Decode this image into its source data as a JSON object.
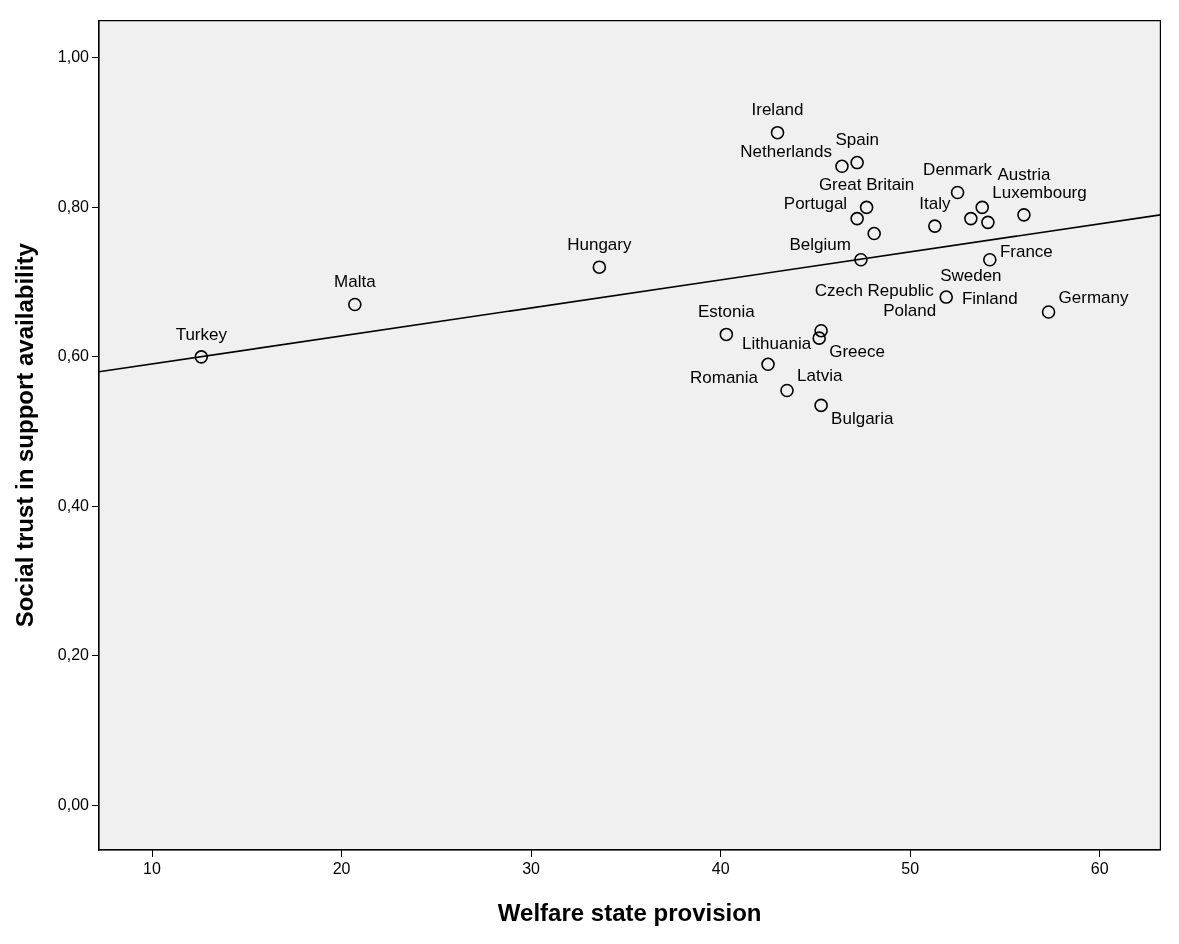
{
  "chart_data": {
    "type": "scatter",
    "xlabel": "Welfare state provision",
    "ylabel": "Social trust in support availability",
    "xlim": [
      7.2,
      63.2
    ],
    "ylim": [
      -0.06,
      1.05
    ],
    "xticks": [
      10,
      20,
      30,
      40,
      50,
      60
    ],
    "yticks": [
      {
        "value": 0,
        "label": "0,00"
      },
      {
        "value": 0.2,
        "label": "0,20"
      },
      {
        "value": 0.4,
        "label": "0,40"
      },
      {
        "value": 0.6,
        "label": "0,60"
      },
      {
        "value": 0.8,
        "label": "0,80"
      },
      {
        "value": 1,
        "label": "1,00"
      }
    ],
    "grid": false,
    "legend": false,
    "series": [
      {
        "type": "scatter",
        "color": "#000000",
        "marker": "circle",
        "x": [
          12.6,
          20.7,
          33.6,
          43.0,
          47.2,
          46.4,
          52.5,
          47.7,
          53.8,
          56.0,
          47.2,
          51.3,
          48.1,
          53.2,
          54.1,
          54.2,
          47.4,
          51.9,
          57.3,
          40.3,
          45.2,
          45.3,
          42.5,
          43.5,
          45.3
        ],
        "values": [
          0.6,
          0.67,
          0.72,
          0.9,
          0.86,
          0.855,
          0.82,
          0.8,
          0.8,
          0.79,
          0.785,
          0.775,
          0.765,
          0.785,
          0.78,
          0.73,
          0.73,
          0.68,
          0.66,
          0.63,
          0.625,
          0.635,
          0.59,
          0.555,
          0.535
        ]
      },
      {
        "type": "line",
        "color": "#000000",
        "line_style": "solid",
        "x": [
          7.2,
          63.2
        ],
        "values": [
          0.58,
          0.79
        ]
      }
    ],
    "annotations": [
      {
        "text": "Turkey",
        "x": 12.6,
        "y": 0.6
      },
      {
        "text": "Malta",
        "x": 20.7,
        "y": 0.67
      },
      {
        "text": "Hungary",
        "x": 33.6,
        "y": 0.72
      },
      {
        "text": "Ireland",
        "x": 43.0,
        "y": 0.9
      },
      {
        "text": "Spain",
        "x": 47.2,
        "y": 0.86
      },
      {
        "text": "Netherlands",
        "x": 46.4,
        "y": 0.855
      },
      {
        "text": "Denmark",
        "x": 52.5,
        "y": 0.82
      },
      {
        "text": "Great Britain",
        "x": 47.7,
        "y": 0.8
      },
      {
        "text": "Luxembourg",
        "x": 53.8,
        "y": 0.8
      },
      {
        "text": "Austria",
        "x": 56.0,
        "y": 0.79
      },
      {
        "text": "Portugal",
        "x": 47.2,
        "y": 0.785
      },
      {
        "text": "Italy",
        "x": 51.3,
        "y": 0.775
      },
      {
        "text": "Czech Republic",
        "x": 48.1,
        "y": 0.765
      },
      {
        "text": "Sweden",
        "x": 53.2,
        "y": 0.785
      },
      {
        "text": "France",
        "x": 54.1,
        "y": 0.78
      },
      {
        "text": "Finland",
        "x": 54.2,
        "y": 0.73
      },
      {
        "text": "Belgium",
        "x": 47.4,
        "y": 0.73
      },
      {
        "text": "Poland",
        "x": 51.9,
        "y": 0.68
      },
      {
        "text": "Germany",
        "x": 57.3,
        "y": 0.66
      },
      {
        "text": "Estonia",
        "x": 40.3,
        "y": 0.63
      },
      {
        "text": "Greece",
        "x": 45.2,
        "y": 0.625
      },
      {
        "text": "Lithuania",
        "x": 45.3,
        "y": 0.635
      },
      {
        "text": "Romania",
        "x": 42.5,
        "y": 0.59
      },
      {
        "text": "Latvia",
        "x": 43.5,
        "y": 0.555
      },
      {
        "text": "Bulgaria",
        "x": 45.3,
        "y": 0.535
      }
    ]
  }
}
